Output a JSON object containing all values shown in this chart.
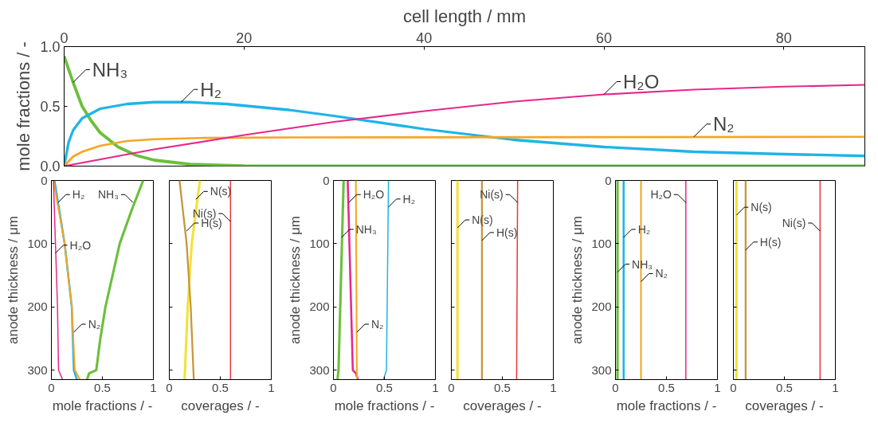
{
  "chart_data": [
    {
      "type": "line",
      "xlabel": "cell length / mm",
      "ylabel": "mole fractions / -",
      "xlim": [
        0,
        89
      ],
      "xticks": [
        0,
        20,
        40,
        60,
        80
      ],
      "ylim": [
        0,
        1
      ],
      "yticks": [
        {
          "value": 0,
          "label": "0.0"
        },
        {
          "value": 0.5,
          "label": "0.5"
        },
        {
          "value": 1,
          "label": "1.0"
        }
      ],
      "series": [
        {
          "color": "#6cbf3c",
          "x": [
            0,
            1,
            2,
            3,
            4,
            6,
            8,
            10,
            14,
            20,
            30,
            89
          ],
          "values": [
            0.92,
            0.7,
            0.5,
            0.38,
            0.28,
            0.16,
            0.09,
            0.05,
            0.015,
            0.003,
            0,
            0
          ]
        },
        {
          "color": "#1fb4e6",
          "x": [
            0,
            0.5,
            1,
            2,
            4,
            7,
            10,
            14,
            18,
            25,
            30,
            40,
            50,
            60,
            70,
            80,
            89
          ],
          "values": [
            0,
            0.2,
            0.3,
            0.4,
            0.48,
            0.52,
            0.535,
            0.535,
            0.52,
            0.47,
            0.42,
            0.31,
            0.22,
            0.16,
            0.12,
            0.1,
            0.085
          ]
        },
        {
          "color": "#f5a623",
          "x": [
            0,
            1,
            2,
            4,
            7,
            10,
            15,
            25,
            89
          ],
          "values": [
            0,
            0.08,
            0.12,
            0.17,
            0.21,
            0.225,
            0.235,
            0.24,
            0.245
          ]
        },
        {
          "color": "#e6288c",
          "x": [
            0,
            5,
            10,
            20,
            30,
            40,
            50,
            60,
            70,
            80,
            89
          ],
          "values": [
            0,
            0.07,
            0.14,
            0.26,
            0.37,
            0.46,
            0.54,
            0.6,
            0.64,
            0.665,
            0.68
          ]
        }
      ],
      "annotations": [
        {
          "text": "NH₃",
          "x": 1,
          "y": 0.7
        },
        {
          "text": "H₂",
          "x": 13,
          "y": 0.535
        },
        {
          "text": "H₂O",
          "x": 60,
          "y": 0.6
        },
        {
          "text": "N₂",
          "x": 70,
          "y": 0.245
        }
      ]
    },
    {
      "type": "line",
      "xlabel": "mole fractions / -",
      "ylabel": "anode thickness / μm",
      "xlim": [
        0,
        1
      ],
      "xticks": [
        0,
        0.5,
        1
      ],
      "ylim": [
        315,
        0
      ],
      "yticks": [
        0,
        100,
        200,
        300
      ],
      "series": [
        {
          "color": "#6cbf3c",
          "x": [
            0.9,
            0.78,
            0.67,
            0.6,
            0.53,
            0.48,
            0.44,
            0.37,
            0.35
          ],
          "values": [
            0,
            50,
            100,
            150,
            200,
            250,
            300,
            305,
            315
          ]
        },
        {
          "color": "#1fb4e6",
          "x": [
            0.03,
            0.13,
            0.2,
            0.22,
            0.25
          ],
          "values": [
            0,
            100,
            200,
            300,
            315
          ]
        },
        {
          "color": "#f5a623",
          "x": [
            0.02,
            0.13,
            0.2,
            0.23,
            0.28
          ],
          "values": [
            0,
            100,
            200,
            300,
            315
          ]
        },
        {
          "color": "#e6288c",
          "x": [
            0.02,
            0.04,
            0.06,
            0.07,
            0.11
          ],
          "values": [
            0,
            100,
            200,
            300,
            315
          ]
        }
      ],
      "annotations": [
        {
          "text": "H₂",
          "x": 0.065,
          "y": 35
        },
        {
          "text": "H₂O",
          "x": 0.04,
          "y": 115
        },
        {
          "text": "N₂",
          "x": 0.22,
          "y": 240
        },
        {
          "text": "NH₃",
          "x": 0.8,
          "y": 35
        }
      ]
    },
    {
      "type": "line",
      "xlabel": "coverages / -",
      "xlim": [
        0,
        1
      ],
      "xticks": [
        0,
        0.5,
        1
      ],
      "ylim": [
        315,
        0
      ],
      "yticks": [
        0,
        100,
        200,
        300
      ],
      "tick_labels": "x",
      "series": [
        {
          "color": "#f2e23a",
          "x": [
            0.3,
            0.22,
            0.18,
            0.15
          ],
          "values": [
            0,
            100,
            200,
            315
          ]
        },
        {
          "color": "#c8963c",
          "x": [
            0.1,
            0.17,
            0.21,
            0.24
          ],
          "values": [
            0,
            100,
            200,
            315
          ]
        },
        {
          "color": "#e8383d",
          "x": [
            0.6,
            0.6
          ],
          "values": [
            0,
            315
          ]
        }
      ],
      "annotations": [
        {
          "text": "N(s)",
          "x": 0.26,
          "y": 30
        },
        {
          "text": "Ni(s)",
          "x": 0.6,
          "y": 65
        },
        {
          "text": "H(s)",
          "x": 0.17,
          "y": 80
        }
      ]
    },
    {
      "type": "line",
      "xlabel": "mole fractions / -",
      "ylabel": "anode thickness / μm",
      "xlim": [
        0,
        1
      ],
      "xticks": [
        0,
        0.5,
        1
      ],
      "ylim": [
        315,
        0
      ],
      "yticks": [
        0,
        100,
        200,
        300
      ],
      "series": [
        {
          "color": "#6cbf3c",
          "x": [
            0.1,
            0.05,
            0.04
          ],
          "values": [
            0,
            300,
            315
          ]
        },
        {
          "color": "#e6288c",
          "x": [
            0.14,
            0.19,
            0.22,
            0.24
          ],
          "values": [
            0,
            300,
            305,
            315
          ]
        },
        {
          "color": "#f5a623",
          "x": [
            0.22,
            0.23
          ],
          "values": [
            0,
            315
          ]
        },
        {
          "color": "#1fb4e6",
          "x": [
            0.54,
            0.52,
            0.49
          ],
          "values": [
            0,
            300,
            315
          ]
        }
      ],
      "annotations": [
        {
          "text": "H₂O",
          "x": 0.15,
          "y": 35
        },
        {
          "text": "H₂",
          "x": 0.54,
          "y": 42
        },
        {
          "text": "NH₃",
          "x": 0.08,
          "y": 90
        },
        {
          "text": "N₂",
          "x": 0.23,
          "y": 240
        }
      ]
    },
    {
      "type": "line",
      "xlabel": "coverages / -",
      "xlim": [
        0,
        1
      ],
      "xticks": [
        0,
        0.5,
        1
      ],
      "ylim": [
        315,
        0
      ],
      "yticks": [
        0,
        100,
        200,
        300
      ],
      "tick_labels": "x",
      "series": [
        {
          "color": "#f2e23a",
          "x": [
            0.06,
            0.06
          ],
          "values": [
            0,
            315
          ]
        },
        {
          "color": "#c8963c",
          "x": [
            0.3,
            0.3
          ],
          "values": [
            0,
            315
          ]
        },
        {
          "color": "#e8383d",
          "x": [
            0.65,
            0.64
          ],
          "values": [
            0,
            315
          ]
        }
      ],
      "annotations": [
        {
          "text": "N(s)",
          "x": 0.06,
          "y": 75
        },
        {
          "text": "H(s)",
          "x": 0.3,
          "y": 95
        },
        {
          "text": "Ni(s)",
          "x": 0.65,
          "y": 35
        }
      ]
    },
    {
      "type": "line",
      "xlabel": "mole fractions / -",
      "ylabel": "anode thickness / μm",
      "xlim": [
        0,
        1
      ],
      "xticks": [
        0,
        0.5,
        1
      ],
      "ylim": [
        315,
        0
      ],
      "yticks": [
        0,
        100,
        200,
        300
      ],
      "series": [
        {
          "color": "#6cbf3c",
          "x": [
            0.02,
            0.02
          ],
          "values": [
            0,
            315
          ]
        },
        {
          "color": "#1fb4e6",
          "x": [
            0.08,
            0.08
          ],
          "values": [
            0,
            315
          ]
        },
        {
          "color": "#f5a623",
          "x": [
            0.25,
            0.25
          ],
          "values": [
            0,
            315
          ]
        },
        {
          "color": "#e6288c",
          "x": [
            0.69,
            0.69
          ],
          "values": [
            0,
            315
          ]
        }
      ],
      "annotations": [
        {
          "text": "H₂",
          "x": 0.08,
          "y": 90
        },
        {
          "text": "NH₃",
          "x": 0.02,
          "y": 145
        },
        {
          "text": "N₂",
          "x": 0.25,
          "y": 160
        },
        {
          "text": "H₂O",
          "x": 0.69,
          "y": 35
        }
      ]
    },
    {
      "type": "line",
      "xlabel": "coverages / -",
      "xlim": [
        0,
        1
      ],
      "xticks": [
        0,
        0.5,
        1
      ],
      "ylim": [
        315,
        0
      ],
      "yticks": [
        0,
        100,
        200,
        300
      ],
      "tick_labels": "x",
      "series": [
        {
          "color": "#f2e23a",
          "x": [
            0.03,
            0.03
          ],
          "values": [
            0,
            315
          ]
        },
        {
          "color": "#c8963c",
          "x": [
            0.12,
            0.12
          ],
          "values": [
            0,
            315
          ]
        },
        {
          "color": "#e8383d",
          "x": [
            0.85,
            0.85
          ],
          "values": [
            0,
            315
          ]
        }
      ],
      "annotations": [
        {
          "text": "N(s)",
          "x": 0.03,
          "y": 55
        },
        {
          "text": "H(s)",
          "x": 0.12,
          "y": 110
        },
        {
          "text": "Ni(s)",
          "x": 0.85,
          "y": 80
        }
      ]
    }
  ]
}
